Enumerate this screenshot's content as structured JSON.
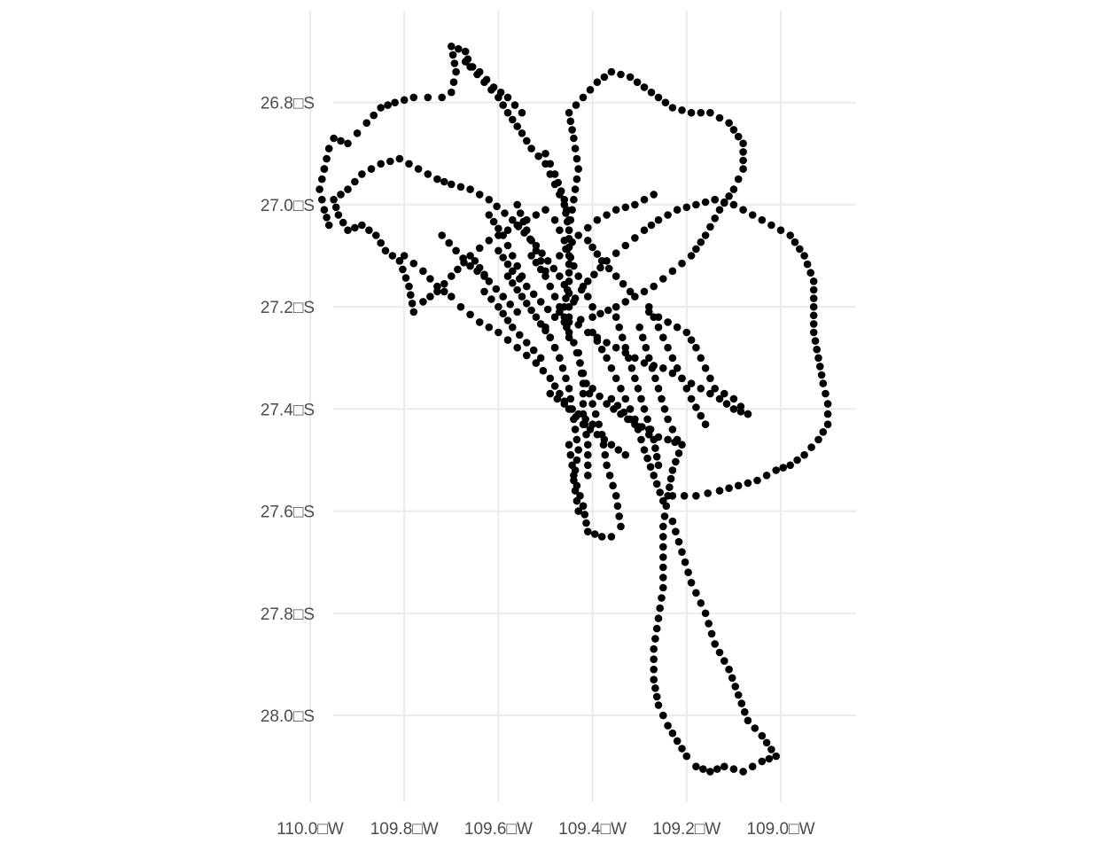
{
  "chart_data": {
    "type": "scatter",
    "title": "",
    "xlabel": "",
    "ylabel": "",
    "xlim": [
      -110.0,
      -108.84
    ],
    "ylim": [
      -28.17,
      -26.62
    ],
    "x_ticks": [
      {
        "value": -110.0,
        "label": "110.0□W"
      },
      {
        "value": -109.8,
        "label": "109.8□W"
      },
      {
        "value": -109.6,
        "label": "109.6□W"
      },
      {
        "value": -109.4,
        "label": "109.4□W"
      },
      {
        "value": -109.2,
        "label": "109.2□W"
      },
      {
        "value": -109.0,
        "label": "109.0□W"
      }
    ],
    "y_ticks": [
      {
        "value": -26.8,
        "label": "26.8□S"
      },
      {
        "value": -27.0,
        "label": "27.0□S"
      },
      {
        "value": -27.2,
        "label": "27.2□S"
      },
      {
        "value": -27.4,
        "label": "27.4□S"
      },
      {
        "value": -27.6,
        "label": "27.6□S"
      },
      {
        "value": -27.8,
        "label": "27.8□S"
      },
      {
        "value": -28.0,
        "label": "28.0□S"
      }
    ],
    "grid": true,
    "legend": "none",
    "point_color": "#000000",
    "tracks": [
      [
        [
          -109.44,
          -27.19
        ],
        [
          -109.47,
          -27.14
        ],
        [
          -109.52,
          -27.08
        ],
        [
          -109.57,
          -27.03
        ],
        [
          -109.62,
          -26.99
        ],
        [
          -109.66,
          -26.97
        ],
        [
          -109.7,
          -26.96
        ],
        [
          -109.73,
          -26.95
        ],
        [
          -109.77,
          -26.93
        ],
        [
          -109.81,
          -26.91
        ],
        [
          -109.85,
          -26.92
        ],
        [
          -109.89,
          -26.94
        ],
        [
          -109.92,
          -26.97
        ],
        [
          -109.95,
          -26.99
        ],
        [
          -109.94,
          -27.02
        ],
        [
          -109.92,
          -27.05
        ],
        [
          -109.89,
          -27.04
        ],
        [
          -109.86,
          -27.06
        ],
        [
          -109.84,
          -27.09
        ],
        [
          -109.81,
          -27.11
        ]
      ],
      [
        [
          -109.81,
          -27.11
        ],
        [
          -109.79,
          -27.16
        ],
        [
          -109.78,
          -27.21
        ],
        [
          -109.76,
          -27.19
        ],
        [
          -109.73,
          -27.17
        ],
        [
          -109.7,
          -27.14
        ],
        [
          -109.66,
          -27.1
        ],
        [
          -109.62,
          -27.07
        ],
        [
          -109.58,
          -27.05
        ],
        [
          -109.54,
          -27.03
        ],
        [
          -109.5,
          -27.01
        ]
      ],
      [
        [
          -109.97,
          -26.93
        ],
        [
          -109.96,
          -26.89
        ],
        [
          -109.95,
          -26.87
        ],
        [
          -109.92,
          -26.88
        ],
        [
          -109.9,
          -26.86
        ],
        [
          -109.88,
          -26.84
        ],
        [
          -109.85,
          -26.81
        ],
        [
          -109.82,
          -26.8
        ],
        [
          -109.78,
          -26.79
        ],
        [
          -109.75,
          -26.79
        ],
        [
          -109.72,
          -26.79
        ],
        [
          -109.7,
          -26.78
        ],
        [
          -109.69,
          -26.74
        ],
        [
          -109.7,
          -26.69
        ],
        [
          -109.67,
          -26.7
        ],
        [
          -109.66,
          -26.73
        ],
        [
          -109.63,
          -26.76
        ],
        [
          -109.6,
          -26.79
        ],
        [
          -109.58,
          -26.82
        ],
        [
          -109.55,
          -26.86
        ],
        [
          -109.53,
          -26.89
        ],
        [
          -109.5,
          -26.92
        ],
        [
          -109.48,
          -26.96
        ],
        [
          -109.46,
          -27.0
        ],
        [
          -109.45,
          -27.05
        ],
        [
          -109.45,
          -27.1
        ],
        [
          -109.45,
          -27.15
        ],
        [
          -109.46,
          -27.2
        ]
      ],
      [
        [
          -109.97,
          -26.93
        ],
        [
          -109.98,
          -26.97
        ],
        [
          -109.97,
          -27.01
        ],
        [
          -109.96,
          -27.04
        ]
      ],
      [
        [
          -109.67,
          -26.72
        ],
        [
          -109.64,
          -26.74
        ],
        [
          -109.61,
          -26.77
        ],
        [
          -109.58,
          -26.79
        ],
        [
          -109.55,
          -26.82
        ]
      ],
      [
        [
          -109.45,
          -27.05
        ],
        [
          -109.44,
          -26.99
        ],
        [
          -109.43,
          -26.93
        ],
        [
          -109.44,
          -26.87
        ],
        [
          -109.45,
          -26.82
        ],
        [
          -109.42,
          -26.79
        ],
        [
          -109.39,
          -26.76
        ],
        [
          -109.36,
          -26.74
        ],
        [
          -109.32,
          -26.75
        ],
        [
          -109.29,
          -26.77
        ],
        [
          -109.26,
          -26.79
        ],
        [
          -109.23,
          -26.81
        ],
        [
          -109.19,
          -26.82
        ],
        [
          -109.15,
          -26.82
        ],
        [
          -109.11,
          -26.84
        ],
        [
          -109.08,
          -26.88
        ],
        [
          -109.08,
          -26.93
        ],
        [
          -109.1,
          -26.97
        ],
        [
          -109.13,
          -27.01
        ],
        [
          -109.16,
          -27.06
        ],
        [
          -109.19,
          -27.1
        ],
        [
          -109.23,
          -27.13
        ],
        [
          -109.27,
          -27.16
        ],
        [
          -109.31,
          -27.18
        ],
        [
          -109.35,
          -27.2
        ],
        [
          -109.4,
          -27.22
        ],
        [
          -109.45,
          -27.23
        ]
      ],
      [
        [
          -109.45,
          -27.2
        ],
        [
          -109.41,
          -27.15
        ],
        [
          -109.37,
          -27.11
        ],
        [
          -109.33,
          -27.08
        ],
        [
          -109.29,
          -27.05
        ],
        [
          -109.26,
          -27.03
        ],
        [
          -109.22,
          -27.01
        ],
        [
          -109.18,
          -27.0
        ],
        [
          -109.14,
          -26.99
        ]
      ],
      [
        [
          -109.14,
          -26.99
        ],
        [
          -109.1,
          -27.0
        ],
        [
          -109.06,
          -27.02
        ],
        [
          -109.02,
          -27.04
        ],
        [
          -108.98,
          -27.06
        ],
        [
          -108.95,
          -27.1
        ],
        [
          -108.93,
          -27.15
        ],
        [
          -108.93,
          -27.2
        ],
        [
          -108.93,
          -27.25
        ],
        [
          -108.92,
          -27.3
        ],
        [
          -108.91,
          -27.35
        ],
        [
          -108.9,
          -27.39
        ],
        [
          -108.9,
          -27.43
        ],
        [
          -108.92,
          -27.46
        ],
        [
          -108.95,
          -27.49
        ],
        [
          -108.98,
          -27.51
        ],
        [
          -109.01,
          -27.52
        ],
        [
          -109.05,
          -27.54
        ],
        [
          -109.09,
          -27.55
        ],
        [
          -109.13,
          -27.56
        ],
        [
          -109.18,
          -27.57
        ],
        [
          -109.23,
          -27.57
        ]
      ],
      [
        [
          -109.47,
          -27.21
        ],
        [
          -109.44,
          -27.27
        ],
        [
          -109.42,
          -27.33
        ],
        [
          -109.4,
          -27.39
        ],
        [
          -109.38,
          -27.45
        ],
        [
          -109.37,
          -27.51
        ],
        [
          -109.35,
          -27.57
        ],
        [
          -109.34,
          -27.63
        ],
        [
          -109.36,
          -27.65
        ],
        [
          -109.38,
          -27.65
        ],
        [
          -109.41,
          -27.64
        ],
        [
          -109.42,
          -27.59
        ]
      ],
      [
        [
          -109.42,
          -27.59
        ],
        [
          -109.44,
          -27.53
        ],
        [
          -109.45,
          -27.47
        ]
      ],
      [
        [
          -109.36,
          -27.38
        ],
        [
          -109.32,
          -27.42
        ],
        [
          -109.28,
          -27.45
        ],
        [
          -109.24,
          -27.46
        ],
        [
          -109.21,
          -27.47
        ],
        [
          -109.23,
          -27.52
        ],
        [
          -109.24,
          -27.57
        ],
        [
          -109.25,
          -27.63
        ],
        [
          -109.25,
          -27.69
        ],
        [
          -109.25,
          -27.75
        ],
        [
          -109.26,
          -27.81
        ],
        [
          -109.27,
          -27.87
        ],
        [
          -109.27,
          -27.93
        ],
        [
          -109.26,
          -27.98
        ],
        [
          -109.24,
          -28.02
        ],
        [
          -109.22,
          -28.05
        ],
        [
          -109.2,
          -28.08
        ],
        [
          -109.18,
          -28.1
        ],
        [
          -109.15,
          -28.11
        ],
        [
          -109.12,
          -28.1
        ],
        [
          -109.08,
          -28.11
        ],
        [
          -109.04,
          -28.09
        ],
        [
          -109.01,
          -28.08
        ],
        [
          -109.04,
          -28.04
        ],
        [
          -109.07,
          -28.01
        ],
        [
          -109.09,
          -27.96
        ],
        [
          -109.11,
          -27.91
        ],
        [
          -109.14,
          -27.86
        ],
        [
          -109.16,
          -27.8
        ],
        [
          -109.19,
          -27.74
        ],
        [
          -109.21,
          -27.68
        ],
        [
          -109.23,
          -27.62
        ]
      ],
      [
        [
          -109.45,
          -27.22
        ],
        [
          -109.41,
          -27.25
        ],
        [
          -109.37,
          -27.27
        ],
        [
          -109.33,
          -27.29
        ],
        [
          -109.29,
          -27.31
        ],
        [
          -109.25,
          -27.32
        ],
        [
          -109.21,
          -27.34
        ],
        [
          -109.17,
          -27.36
        ],
        [
          -109.13,
          -27.38
        ],
        [
          -109.1,
          -27.4
        ],
        [
          -109.07,
          -27.41
        ]
      ],
      [
        [
          -109.07,
          -27.41
        ],
        [
          -109.1,
          -27.38
        ],
        [
          -109.14,
          -27.36
        ],
        [
          -109.16,
          -27.32
        ],
        [
          -109.18,
          -27.28
        ],
        [
          -109.2,
          -27.25
        ],
        [
          -109.24,
          -27.23
        ],
        [
          -109.28,
          -27.21
        ]
      ],
      [
        [
          -109.47,
          -27.1
        ],
        [
          -109.43,
          -27.06
        ],
        [
          -109.39,
          -27.03
        ],
        [
          -109.35,
          -27.01
        ],
        [
          -109.31,
          -27.0
        ],
        [
          -109.27,
          -26.98
        ]
      ],
      [
        [
          -109.5,
          -27.24
        ],
        [
          -109.47,
          -27.3
        ],
        [
          -109.45,
          -27.36
        ],
        [
          -109.44,
          -27.42
        ],
        [
          -109.43,
          -27.48
        ],
        [
          -109.44,
          -27.54
        ],
        [
          -109.43,
          -27.6
        ]
      ],
      [
        [
          -109.43,
          -27.29
        ],
        [
          -109.42,
          -27.35
        ],
        [
          -109.42,
          -27.41
        ],
        [
          -109.41,
          -27.47
        ],
        [
          -109.41,
          -27.53
        ]
      ],
      [
        [
          -109.4,
          -27.25
        ],
        [
          -109.37,
          -27.3
        ],
        [
          -109.34,
          -27.36
        ],
        [
          -109.31,
          -27.42
        ],
        [
          -109.29,
          -27.48
        ],
        [
          -109.27,
          -27.53
        ],
        [
          -109.25,
          -27.58
        ]
      ],
      [
        [
          -109.35,
          -27.22
        ],
        [
          -109.33,
          -27.28
        ],
        [
          -109.31,
          -27.34
        ],
        [
          -109.29,
          -27.4
        ],
        [
          -109.27,
          -27.46
        ],
        [
          -109.26,
          -27.51
        ]
      ],
      [
        [
          -109.3,
          -27.24
        ],
        [
          -109.28,
          -27.3
        ],
        [
          -109.26,
          -27.36
        ],
        [
          -109.24,
          -27.42
        ],
        [
          -109.22,
          -27.46
        ]
      ],
      [
        [
          -109.28,
          -27.2
        ],
        [
          -109.25,
          -27.26
        ],
        [
          -109.22,
          -27.32
        ],
        [
          -109.19,
          -27.38
        ],
        [
          -109.16,
          -27.43
        ]
      ],
      [
        [
          -109.5,
          -26.9
        ],
        [
          -109.48,
          -26.94
        ],
        [
          -109.46,
          -26.99
        ],
        [
          -109.45,
          -27.03
        ]
      ],
      [
        [
          -109.53,
          -27.1
        ],
        [
          -109.5,
          -27.14
        ],
        [
          -109.48,
          -27.18
        ],
        [
          -109.46,
          -27.22
        ],
        [
          -109.45,
          -27.26
        ]
      ],
      [
        [
          -109.58,
          -27.14
        ],
        [
          -109.55,
          -27.18
        ],
        [
          -109.52,
          -27.22
        ],
        [
          -109.49,
          -27.26
        ],
        [
          -109.47,
          -27.3
        ]
      ],
      [
        [
          -109.63,
          -27.17
        ],
        [
          -109.6,
          -27.2
        ],
        [
          -109.57,
          -27.24
        ],
        [
          -109.54,
          -27.27
        ],
        [
          -109.51,
          -27.3
        ]
      ],
      [
        [
          -109.68,
          -27.2
        ],
        [
          -109.64,
          -27.23
        ],
        [
          -109.6,
          -27.25
        ],
        [
          -109.56,
          -27.28
        ],
        [
          -109.52,
          -27.31
        ]
      ],
      [
        [
          -109.52,
          -27.31
        ],
        [
          -109.49,
          -27.34
        ],
        [
          -109.47,
          -27.37
        ],
        [
          -109.45,
          -27.4
        ],
        [
          -109.42,
          -27.43
        ],
        [
          -109.39,
          -27.45
        ],
        [
          -109.36,
          -27.47
        ],
        [
          -109.33,
          -27.49
        ]
      ],
      [
        [
          -109.6,
          -27.09
        ],
        [
          -109.57,
          -27.13
        ],
        [
          -109.54,
          -27.16
        ],
        [
          -109.51,
          -27.19
        ],
        [
          -109.48,
          -27.22
        ]
      ],
      [
        [
          -109.65,
          -27.11
        ],
        [
          -109.62,
          -27.15
        ],
        [
          -109.59,
          -27.18
        ],
        [
          -109.56,
          -27.21
        ]
      ],
      [
        [
          -109.72,
          -27.06
        ],
        [
          -109.69,
          -27.09
        ],
        [
          -109.66,
          -27.12
        ],
        [
          -109.63,
          -27.14
        ]
      ],
      [
        [
          -109.8,
          -27.1
        ],
        [
          -109.76,
          -27.13
        ],
        [
          -109.73,
          -27.16
        ],
        [
          -109.7,
          -27.18
        ]
      ],
      [
        [
          -109.48,
          -27.03
        ],
        [
          -109.46,
          -27.07
        ],
        [
          -109.44,
          -27.12
        ],
        [
          -109.42,
          -27.16
        ],
        [
          -109.4,
          -27.2
        ]
      ],
      [
        [
          -109.56,
          -27.0
        ],
        [
          -109.54,
          -27.05
        ],
        [
          -109.52,
          -27.09
        ],
        [
          -109.5,
          -27.13
        ]
      ],
      [
        [
          -109.62,
          -27.02
        ],
        [
          -109.59,
          -27.06
        ],
        [
          -109.57,
          -27.1
        ],
        [
          -109.55,
          -27.14
        ]
      ],
      [
        [
          -109.41,
          -27.07
        ],
        [
          -109.38,
          -27.11
        ],
        [
          -109.35,
          -27.14
        ],
        [
          -109.32,
          -27.17
        ]
      ],
      [
        [
          -109.4,
          -27.36
        ],
        [
          -109.37,
          -27.39
        ],
        [
          -109.34,
          -27.41
        ],
        [
          -109.31,
          -27.43
        ],
        [
          -109.28,
          -27.44
        ]
      ],
      [
        [
          -109.49,
          -27.37
        ],
        [
          -109.46,
          -27.39
        ],
        [
          -109.43,
          -27.41
        ],
        [
          -109.4,
          -27.43
        ]
      ]
    ]
  }
}
